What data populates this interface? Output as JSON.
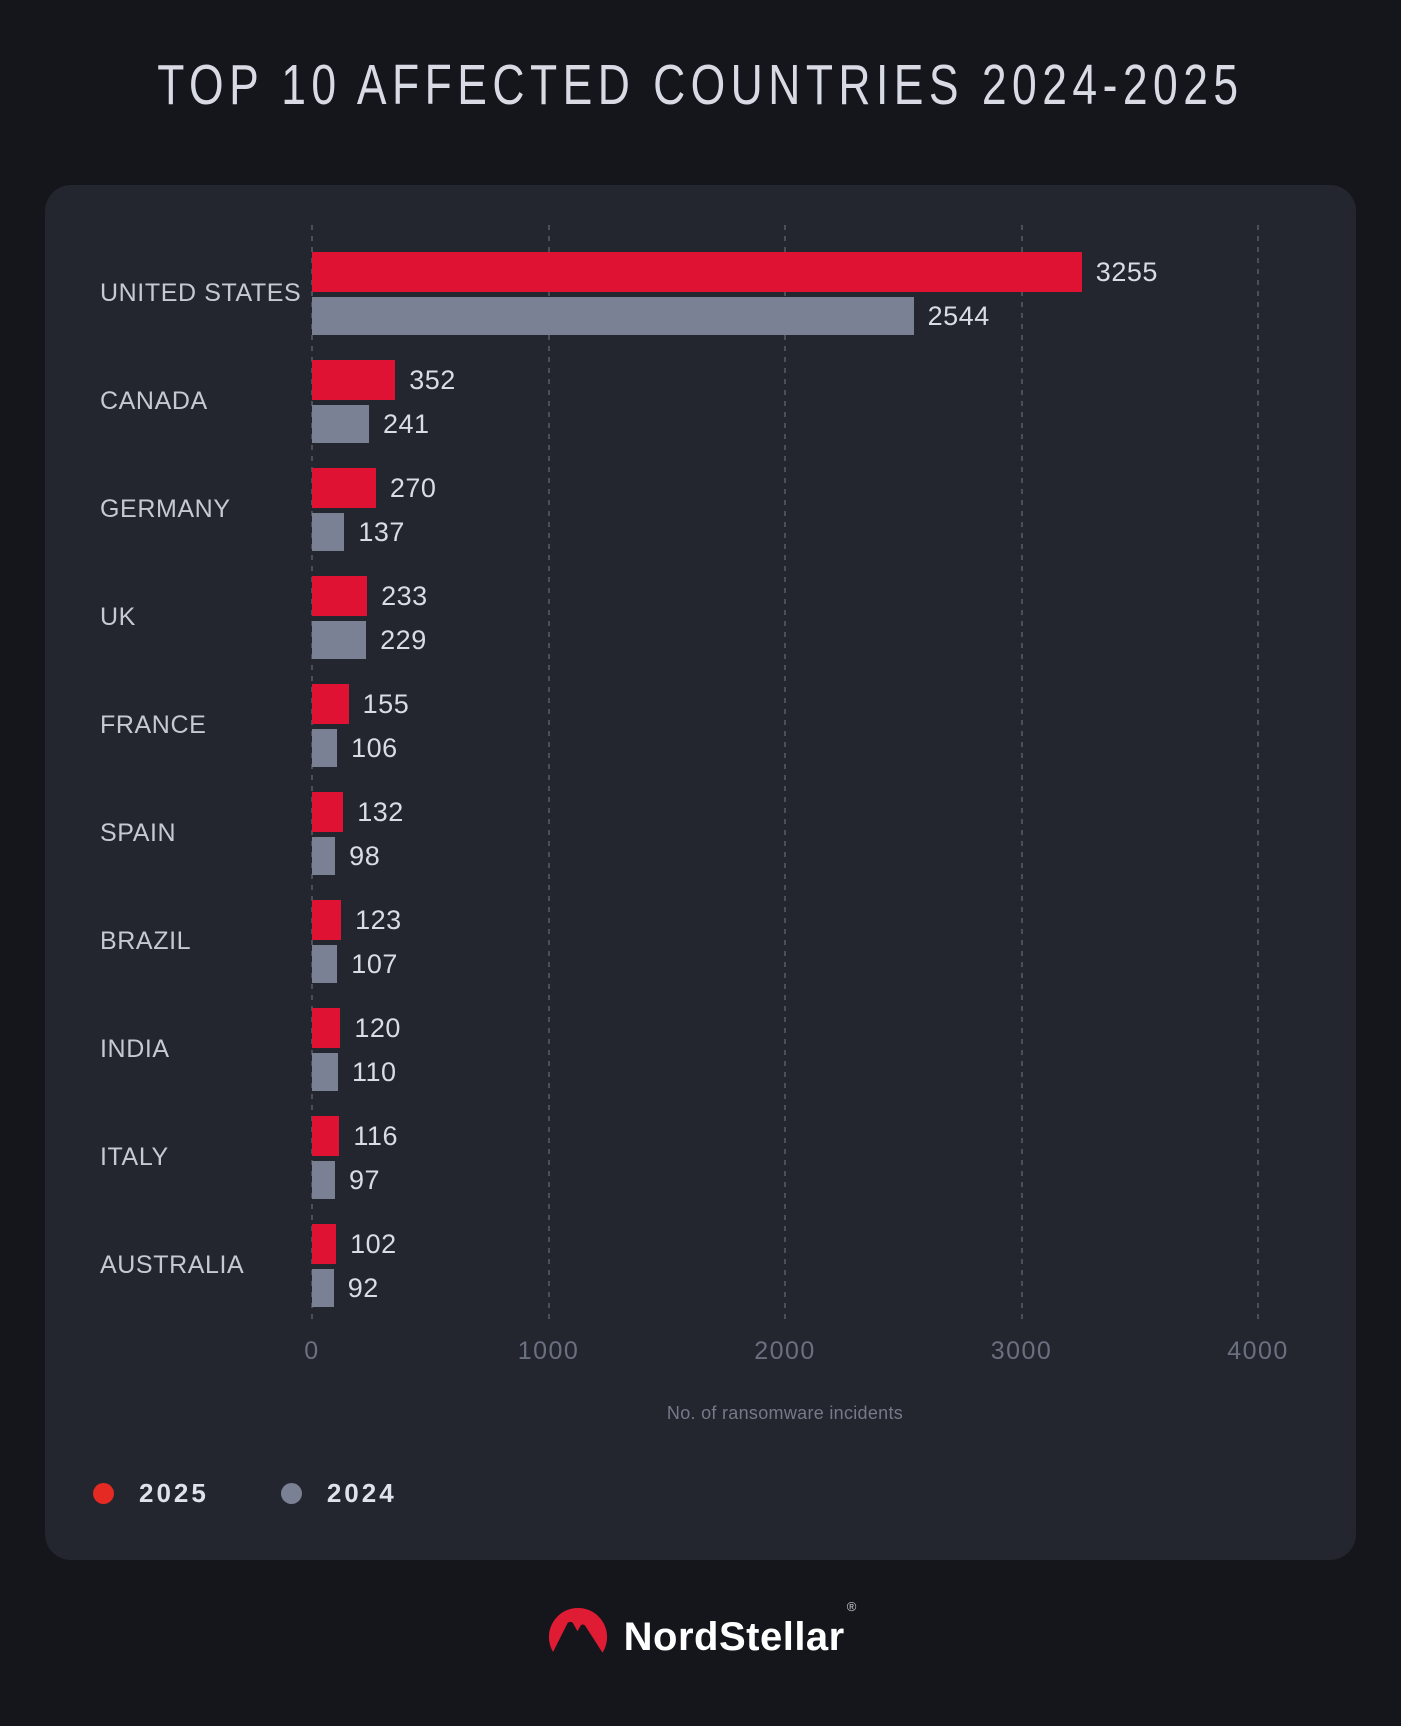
{
  "title": "TOP 10 AFFECTED COUNTRIES 2024-2025",
  "chart_data": {
    "type": "bar",
    "orientation": "horizontal",
    "title": "TOP 10 AFFECTED COUNTRIES 2024-2025",
    "categories": [
      "UNITED STATES",
      "CANADA",
      "GERMANY",
      "UK",
      "FRANCE",
      "SPAIN",
      "BRAZIL",
      "INDIA",
      "ITALY",
      "AUSTRALIA"
    ],
    "series": [
      {
        "name": "2025",
        "color": "#e01234",
        "values": [
          3255,
          352,
          270,
          233,
          155,
          132,
          123,
          120,
          116,
          102
        ]
      },
      {
        "name": "2024",
        "color": "#7b8194",
        "values": [
          2544,
          241,
          137,
          229,
          106,
          98,
          107,
          110,
          97,
          92
        ]
      }
    ],
    "xlabel": "No. of ransomware incidents",
    "xlim": [
      0,
      4000
    ],
    "xticks": [
      0,
      1000,
      2000,
      3000,
      4000
    ],
    "grid": "vertical dashed",
    "legend_position": "bottom-left"
  },
  "legend": {
    "items": [
      {
        "label": "2025",
        "color": "#e42a23"
      },
      {
        "label": "2024",
        "color": "#7b8194"
      }
    ]
  },
  "footer": {
    "brand": "NordStellar",
    "registered": "®"
  },
  "colors": {
    "page_bg": "#15161c",
    "panel_bg": "#24262f",
    "bar_red": "#e01234",
    "bar_gray": "#7b8194",
    "grid": "#4a4f5a",
    "title_text": "#d8dbe4",
    "label_text": "#c6c9d3",
    "value_text": "#d9dce4",
    "tick_text": "#6b7080",
    "axis_title_text": "#757a88",
    "logo_red": "#e01b34"
  }
}
